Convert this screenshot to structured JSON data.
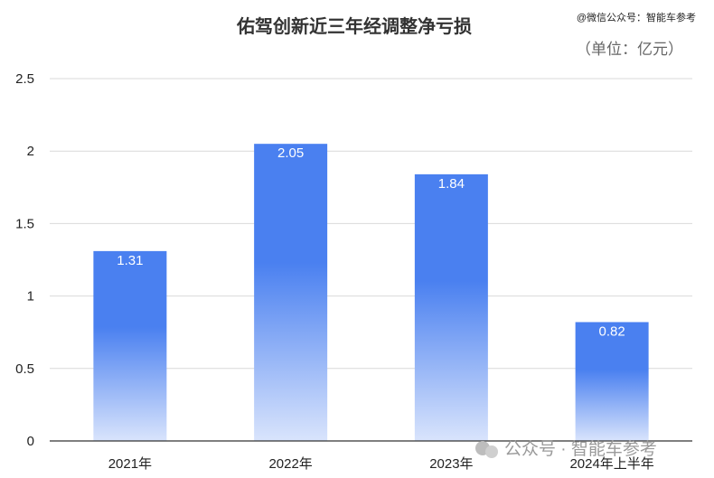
{
  "chart_data": {
    "type": "bar",
    "title": "佑驾创新近三年经调整净亏损",
    "unit_label": "（单位：亿元）",
    "source_note": "@微信公众号：智能车参考",
    "watermark": "公众号 · 智能车参考",
    "categories": [
      "2021年",
      "2022年",
      "2023年",
      "2024年上半年"
    ],
    "values": [
      1.31,
      2.05,
      1.84,
      0.82
    ],
    "data_labels": [
      "1.31",
      "2.05",
      "1.84",
      "0.82"
    ],
    "ylim": [
      0,
      2.5
    ],
    "yticks": [
      "0",
      "0.5",
      "1",
      "1.5",
      "2",
      "2.5"
    ],
    "ytick_values": [
      0,
      0.5,
      1,
      1.5,
      2,
      2.5
    ],
    "grid": true,
    "bar_color_top": "#4a80f0",
    "bar_color_bottom": "#d9e4fc"
  }
}
